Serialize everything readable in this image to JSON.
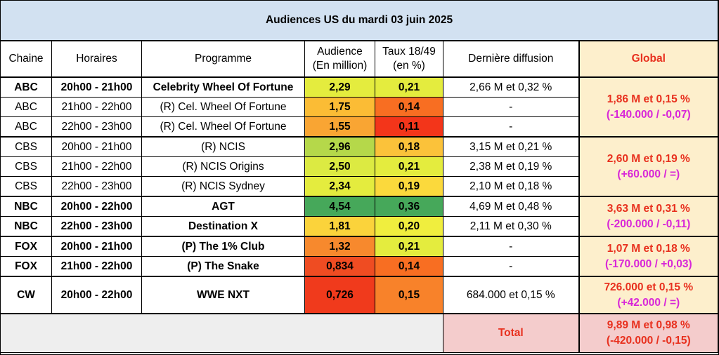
{
  "title": "Audiences US du mardi 03 juin 2025",
  "headers": {
    "chaine": "Chaine",
    "horaires": "Horaires",
    "programme": "Programme",
    "audience_l1": "Audience",
    "audience_l2": "(En million)",
    "taux_l1": "Taux 18/49",
    "taux_l2": "(en %)",
    "derniere": "Dernière diffusion",
    "global": "Global"
  },
  "colors": {
    "title_bg": "#d2e1f1",
    "global_bg": "#fdefcc",
    "global_text": "#e8301e",
    "delta_text": "#d826d8",
    "total_bg": "#f4cccc"
  },
  "rows": [
    {
      "chaine": "ABC",
      "horaires": "20h00 - 21h00",
      "programme": "Celebrity Wheel Of Fortune",
      "audience": "2,29",
      "taux": "0,21",
      "derniere": "2,66 M et 0,32 %",
      "bold": true,
      "aud_color": "#e4ec3e",
      "taux_color": "#e4ec3e"
    },
    {
      "chaine": "ABC",
      "horaires": "21h00 - 22h00",
      "programme": "(R) Cel. Wheel Of Fortune",
      "audience": "1,75",
      "taux": "0,14",
      "derniere": "-",
      "bold": false,
      "aud_color": "#fbbc35",
      "taux_color": "#f86e22"
    },
    {
      "chaine": "ABC",
      "horaires": "22h00 - 23h00",
      "programme": "(R) Cel. Wheel Of Fortune",
      "audience": "1,55",
      "taux": "0,11",
      "derniere": "-",
      "bold": false,
      "aud_color": "#f9a533",
      "taux_color": "#f3351a"
    },
    {
      "chaine": "CBS",
      "horaires": "20h00 - 21h00",
      "programme": "(R) NCIS",
      "audience": "2,96",
      "taux": "0,18",
      "derniere": "3,15 M et 0,21 %",
      "bold": false,
      "aud_color": "#b5d84a",
      "taux_color": "#fbc23a"
    },
    {
      "chaine": "CBS",
      "horaires": "21h00 - 22h00",
      "programme": "(R) NCIS Origins",
      "audience": "2,50",
      "taux": "0,21",
      "derniere": "2,38 M et 0,19 %",
      "bold": false,
      "aud_color": "#dcea42",
      "taux_color": "#e4ec3e"
    },
    {
      "chaine": "CBS",
      "horaires": "22h00 - 23h00",
      "programme": "(R) NCIS Sydney",
      "audience": "2,34",
      "taux": "0,19",
      "derniere": "2,10 M et 0,18 %",
      "bold": false,
      "aud_color": "#e4ec3e",
      "taux_color": "#fbd93c"
    },
    {
      "chaine": "NBC",
      "horaires": "20h00 - 22h00",
      "programme": "AGT",
      "audience": "4,54",
      "taux": "0,36",
      "derniere": "4,69 M et 0,48 %",
      "bold": true,
      "aud_color": "#46a85a",
      "taux_color": "#46a85a"
    },
    {
      "chaine": "NBC",
      "horaires": "22h00 - 23h00",
      "programme": "Destination X",
      "audience": "1,81",
      "taux": "0,20",
      "derniere": "2,11 M et 0,30 %",
      "bold": true,
      "aud_color": "#fbd33b",
      "taux_color": "#f0ee3e"
    },
    {
      "chaine": "FOX",
      "horaires": "20h00 - 21h00",
      "programme": "(P) The 1% Club",
      "audience": "1,32",
      "taux": "0,21",
      "derniere": "-",
      "bold": true,
      "aud_color": "#f7892d",
      "taux_color": "#e4ec3e"
    },
    {
      "chaine": "FOX",
      "horaires": "21h00 - 22h00",
      "programme": "(P) The Snake",
      "audience": "0,834",
      "taux": "0,14",
      "derniere": "-",
      "bold": true,
      "aud_color": "#ef4c22",
      "taux_color": "#f86e22"
    },
    {
      "chaine": "CW",
      "horaires": "20h00 - 22h00",
      "programme": "WWE NXT",
      "audience": "0,726",
      "taux": "0,15",
      "derniere": "684.000 et 0,15 %",
      "bold": true,
      "aud_color": "#f03a1c",
      "taux_color": "#f8822a"
    }
  ],
  "global": [
    {
      "value": "1,86 M et 0,15 %",
      "delta": "(-140.000 / -0,07)"
    },
    {
      "value": "2,60 M et 0,19 %",
      "delta": "(+60.000 / =)"
    },
    {
      "value": "3,63 M et 0,31 %",
      "delta": "(-200.000 / -0,11)"
    },
    {
      "value": "1,07 M et 0,18 %",
      "delta": "(-170.000 / +0,03)"
    },
    {
      "value": "726.000 et 0,15 %",
      "delta": "(+42.000 / =)"
    }
  ],
  "total": {
    "label": "Total",
    "value": "9,89 M et 0,98 %",
    "delta": "(-420.000 / -0,15)"
  }
}
